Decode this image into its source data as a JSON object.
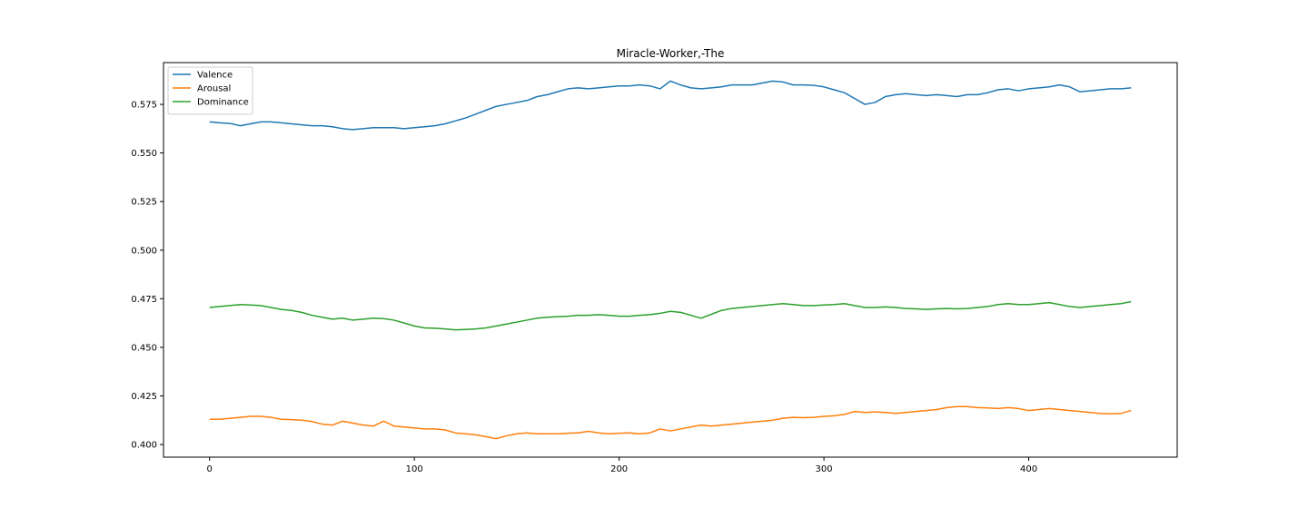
{
  "chart_data": {
    "type": "line",
    "title": "Miracle-Worker,-The",
    "xlabel": "",
    "ylabel": "",
    "xlim": [
      -22.5,
      472.5
    ],
    "ylim": [
      0.3935,
      0.5965
    ],
    "x_ticks": [
      0,
      100,
      200,
      300,
      400
    ],
    "x_tick_labels": [
      "0",
      "100",
      "200",
      "300",
      "400"
    ],
    "y_ticks": [
      0.4,
      0.425,
      0.45,
      0.475,
      0.5,
      0.525,
      0.55,
      0.575
    ],
    "y_tick_labels": [
      "0.400",
      "0.425",
      "0.450",
      "0.475",
      "0.500",
      "0.525",
      "0.550",
      "0.575"
    ],
    "grid": false,
    "legend_position": "top-left",
    "series": [
      {
        "name": "Valence",
        "color": "#1f77b4",
        "x": [
          0,
          5,
          10,
          15,
          20,
          25,
          30,
          35,
          40,
          45,
          50,
          55,
          60,
          65,
          70,
          75,
          80,
          85,
          90,
          95,
          100,
          105,
          110,
          115,
          120,
          125,
          130,
          135,
          140,
          145,
          150,
          155,
          160,
          165,
          170,
          175,
          180,
          185,
          190,
          195,
          200,
          205,
          210,
          215,
          220,
          225,
          230,
          235,
          240,
          245,
          250,
          255,
          260,
          265,
          270,
          275,
          280,
          285,
          290,
          295,
          300,
          305,
          310,
          315,
          320,
          325,
          330,
          335,
          340,
          345,
          350,
          355,
          360,
          365,
          370,
          375,
          380,
          385,
          390,
          395,
          400,
          405,
          410,
          415,
          420,
          425,
          430,
          435,
          440,
          445,
          450
        ],
        "values": [
          0.566,
          0.5655,
          0.5652,
          0.564,
          0.565,
          0.566,
          0.566,
          0.5655,
          0.565,
          0.5645,
          0.564,
          0.564,
          0.5635,
          0.5625,
          0.562,
          0.5625,
          0.563,
          0.563,
          0.563,
          0.5625,
          0.563,
          0.5635,
          0.564,
          0.565,
          0.5665,
          0.568,
          0.57,
          0.572,
          0.574,
          0.575,
          0.576,
          0.577,
          0.579,
          0.58,
          0.5815,
          0.583,
          0.5835,
          0.583,
          0.5835,
          0.584,
          0.5845,
          0.5845,
          0.585,
          0.5845,
          0.583,
          0.587,
          0.585,
          0.5835,
          0.583,
          0.5835,
          0.584,
          0.585,
          0.585,
          0.585,
          0.586,
          0.587,
          0.5865,
          0.585,
          0.585,
          0.5848,
          0.584,
          0.5825,
          0.581,
          0.578,
          0.575,
          0.576,
          0.579,
          0.58,
          0.5805,
          0.58,
          0.5795,
          0.58,
          0.5795,
          0.579,
          0.58,
          0.58,
          0.581,
          0.5825,
          0.583,
          0.582,
          0.583,
          0.5835,
          0.584,
          0.585,
          0.584,
          0.5815,
          0.582,
          0.5825,
          0.583,
          0.583,
          0.5835
        ]
      },
      {
        "name": "Arousal",
        "color": "#ff7f0e",
        "x": [
          0,
          5,
          10,
          15,
          20,
          25,
          30,
          35,
          40,
          45,
          50,
          55,
          60,
          65,
          70,
          75,
          80,
          85,
          90,
          95,
          100,
          105,
          110,
          115,
          120,
          125,
          130,
          135,
          140,
          145,
          150,
          155,
          160,
          165,
          170,
          175,
          180,
          185,
          190,
          195,
          200,
          205,
          210,
          215,
          220,
          225,
          230,
          235,
          240,
          245,
          250,
          255,
          260,
          265,
          270,
          275,
          280,
          285,
          290,
          295,
          300,
          305,
          310,
          315,
          320,
          325,
          330,
          335,
          340,
          345,
          350,
          355,
          360,
          365,
          370,
          375,
          380,
          385,
          390,
          395,
          400,
          405,
          410,
          415,
          420,
          425,
          430,
          435,
          440,
          445,
          450
        ],
        "values": [
          0.413,
          0.413,
          0.4135,
          0.414,
          0.4145,
          0.4145,
          0.414,
          0.413,
          0.4128,
          0.4125,
          0.4118,
          0.4105,
          0.41,
          0.412,
          0.411,
          0.41,
          0.4095,
          0.412,
          0.4095,
          0.409,
          0.4085,
          0.408,
          0.408,
          0.4075,
          0.406,
          0.4055,
          0.405,
          0.404,
          0.403,
          0.4045,
          0.4055,
          0.406,
          0.4055,
          0.4055,
          0.4055,
          0.4058,
          0.406,
          0.4068,
          0.406,
          0.4055,
          0.4058,
          0.406,
          0.4055,
          0.406,
          0.408,
          0.407,
          0.408,
          0.409,
          0.41,
          0.4095,
          0.41,
          0.4105,
          0.411,
          0.4115,
          0.412,
          0.4125,
          0.4135,
          0.414,
          0.4138,
          0.414,
          0.4145,
          0.4148,
          0.4155,
          0.417,
          0.4165,
          0.4168,
          0.4165,
          0.416,
          0.4165,
          0.417,
          0.4175,
          0.418,
          0.419,
          0.4195,
          0.4195,
          0.419,
          0.4188,
          0.4185,
          0.419,
          0.4185,
          0.4175,
          0.418,
          0.4185,
          0.418,
          0.4175,
          0.417,
          0.4165,
          0.416,
          0.4158,
          0.416,
          0.4175
        ]
      },
      {
        "name": "Dominance",
        "color": "#2ca02c",
        "x": [
          0,
          5,
          10,
          15,
          20,
          25,
          30,
          35,
          40,
          45,
          50,
          55,
          60,
          65,
          70,
          75,
          80,
          85,
          90,
          95,
          100,
          105,
          110,
          115,
          120,
          125,
          130,
          135,
          140,
          145,
          150,
          155,
          160,
          165,
          170,
          175,
          180,
          185,
          190,
          195,
          200,
          205,
          210,
          215,
          220,
          225,
          230,
          235,
          240,
          245,
          250,
          255,
          260,
          265,
          270,
          275,
          280,
          285,
          290,
          295,
          300,
          305,
          310,
          315,
          320,
          325,
          330,
          335,
          340,
          345,
          350,
          355,
          360,
          365,
          370,
          375,
          380,
          385,
          390,
          395,
          400,
          405,
          410,
          415,
          420,
          425,
          430,
          435,
          440,
          445,
          450
        ],
        "values": [
          0.4705,
          0.471,
          0.4715,
          0.472,
          0.4718,
          0.4715,
          0.4705,
          0.4695,
          0.469,
          0.468,
          0.4665,
          0.4655,
          0.4645,
          0.465,
          0.464,
          0.4645,
          0.465,
          0.4648,
          0.464,
          0.4625,
          0.461,
          0.46,
          0.4598,
          0.4595,
          0.459,
          0.4592,
          0.4595,
          0.46,
          0.461,
          0.462,
          0.463,
          0.464,
          0.465,
          0.4655,
          0.4658,
          0.466,
          0.4665,
          0.4665,
          0.4668,
          0.4665,
          0.466,
          0.466,
          0.4665,
          0.4668,
          0.4675,
          0.4685,
          0.468,
          0.4665,
          0.465,
          0.467,
          0.469,
          0.47,
          0.4705,
          0.471,
          0.4715,
          0.472,
          0.4725,
          0.472,
          0.4715,
          0.4715,
          0.4718,
          0.472,
          0.4725,
          0.4715,
          0.4705,
          0.4705,
          0.4708,
          0.4705,
          0.47,
          0.4698,
          0.4695,
          0.4698,
          0.47,
          0.4698,
          0.47,
          0.4705,
          0.471,
          0.472,
          0.4725,
          0.472,
          0.472,
          0.4725,
          0.473,
          0.472,
          0.471,
          0.4705,
          0.471,
          0.4715,
          0.472,
          0.4725,
          0.4735
        ]
      }
    ]
  }
}
